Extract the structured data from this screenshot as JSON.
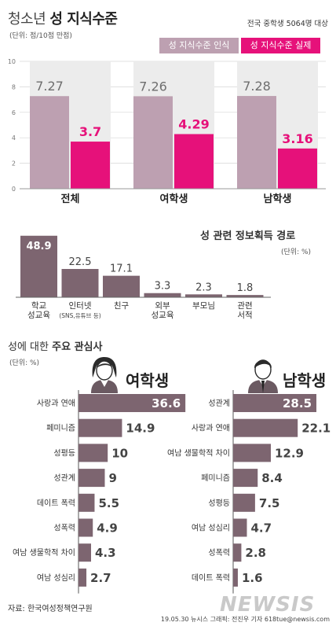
{
  "title": {
    "prefix": "청소년",
    "emph": "성 지식수준"
  },
  "unit_top": "(단위: 점/10점 만점)",
  "subject": "전국 중학생 5064명 대상",
  "legend": {
    "perceived": "성 지식수준 인식",
    "actual": "성 지식수준 실제"
  },
  "colors": {
    "perceived": "#bda0b1",
    "actual": "#e6117a",
    "bar2": "#7d6570",
    "bg_col": "#ececec"
  },
  "chart_data": [
    {
      "type": "bar",
      "categories": [
        "전체",
        "여학생",
        "남학생"
      ],
      "series": [
        {
          "name": "성 지식수준 인식",
          "values": [
            7.27,
            7.26,
            7.28
          ]
        },
        {
          "name": "성 지식수준 실제",
          "values": [
            3.7,
            4.29,
            3.16
          ]
        }
      ],
      "ylim": [
        0,
        10
      ],
      "yticks": [
        0,
        2,
        4,
        6,
        8,
        10
      ]
    },
    {
      "type": "bar",
      "title": "성 관련 정보획득 경로",
      "unit": "(단위: %)",
      "categories": [
        "학교\n성교육",
        "인터넷",
        "친구",
        "외부\n성교육",
        "부모님",
        "관련\n서적"
      ],
      "sublabels": [
        "",
        "(SNS,유튜브 등)",
        "",
        "",
        "",
        ""
      ],
      "values": [
        48.9,
        22.5,
        17.1,
        3.3,
        2.3,
        1.8
      ]
    },
    {
      "type": "bar",
      "title_plain": "성에 대한",
      "title_emph": "주요 관심사",
      "unit": "(단위: %)",
      "groups": [
        {
          "name": "여학생",
          "categories": [
            "사랑과 연애",
            "페미니즘",
            "성평등",
            "성관계",
            "데이트 폭력",
            "성폭력",
            "여남 생물학적 차이",
            "여남 성심리"
          ],
          "values": [
            36.6,
            14.9,
            10,
            9,
            5.5,
            4.9,
            4.3,
            2.7
          ]
        },
        {
          "name": "남학생",
          "categories": [
            "성관계",
            "사랑과 연애",
            "여남 생물학적 차이",
            "페미니즘",
            "성평등",
            "여남 성심리",
            "성폭력",
            "데이트 폭력"
          ],
          "values": [
            28.5,
            22.1,
            12.9,
            8.4,
            7.5,
            4.7,
            2.8,
            1.6
          ]
        }
      ]
    }
  ],
  "source": "자료: 한국여성정책연구원",
  "credit": "19.05.30  뉴시스 그래픽: 전진우 기자 618tue@newsis.com",
  "logo": "NEWSIS",
  "icons": {
    "female": "female-person-icon",
    "male": "male-person-icon"
  }
}
